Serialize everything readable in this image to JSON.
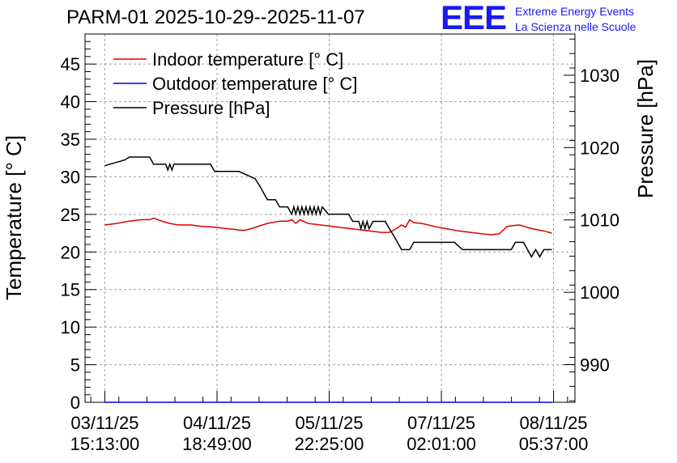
{
  "chart_data": {
    "type": "line",
    "title": "PARM-01 2025-10-29--2025-11-07",
    "ylabel_left": "Temperature [° C]",
    "ylabel_right": "Pressure [hPa]",
    "ylim_left": [
      0,
      49
    ],
    "ylim_right": [
      984.8,
      1035.7
    ],
    "xlim_hours": [
      -4.87,
      115.67
    ],
    "grid": true,
    "legend_position": "top-left",
    "x_ticks": [
      {
        "t": 0,
        "date": "03/11/25",
        "time": "15:13:00"
      },
      {
        "t": 27.6,
        "date": "04/11/25",
        "time": "18:49:00"
      },
      {
        "t": 55.2,
        "date": "05/11/25",
        "time": "22:25:00"
      },
      {
        "t": 82.8,
        "date": "07/11/25",
        "time": "02:01:00"
      },
      {
        "t": 110.4,
        "date": "08/11/25",
        "time": "05:37:00"
      }
    ],
    "y_ticks_left": [
      0,
      5,
      10,
      15,
      20,
      25,
      30,
      35,
      40,
      45
    ],
    "y_ticks_right": [
      990,
      1000,
      1010,
      1020,
      1030
    ],
    "series": [
      {
        "name": "Indoor temperature [° C]",
        "color": "#dd0000",
        "axis": "left",
        "x": [
          0,
          3,
          6,
          9,
          11,
          12,
          14,
          16,
          18,
          21,
          24,
          27,
          30,
          32,
          33,
          34.5,
          36,
          40,
          43,
          45,
          46,
          47,
          48,
          50,
          53,
          56,
          59,
          62,
          65,
          68,
          70,
          72,
          73,
          74,
          75,
          76,
          78,
          81,
          84,
          87,
          90,
          93,
          95,
          97,
          99,
          102,
          105,
          108,
          110
        ],
        "values": [
          23.6,
          23.8,
          24.1,
          24.3,
          24.3,
          24.5,
          24.1,
          23.8,
          23.6,
          23.6,
          23.4,
          23.3,
          23.1,
          23.0,
          22.9,
          22.9,
          23.1,
          23.8,
          24.1,
          24.1,
          24.3,
          23.8,
          24.3,
          23.8,
          23.6,
          23.4,
          23.2,
          23.0,
          22.8,
          22.6,
          22.6,
          23.2,
          23.6,
          23.3,
          24.3,
          23.9,
          23.8,
          23.4,
          23.1,
          22.8,
          22.6,
          22.4,
          22.3,
          22.4,
          23.4,
          23.6,
          23.1,
          22.8,
          22.5
        ]
      },
      {
        "name": "Outdoor temperature [° C]",
        "color": "#0000ee",
        "axis": "left",
        "x": [
          0,
          110
        ],
        "values": [
          0,
          0
        ]
      },
      {
        "name": "Pressure [hPa]",
        "color": "#000000",
        "axis": "right",
        "x": [
          0,
          5,
          6,
          11,
          12,
          15,
          15.5,
          16,
          16.5,
          17,
          26,
          27,
          33,
          37,
          38,
          39,
          40,
          42,
          43,
          44,
          45,
          46,
          46.5,
          47,
          47.5,
          48,
          48.5,
          49,
          49.5,
          50,
          50.5,
          51,
          51.5,
          52,
          52.5,
          53,
          53.5,
          55,
          60,
          61,
          62.5,
          63,
          63.5,
          64,
          64.5,
          65,
          66,
          69,
          70,
          71,
          72,
          73,
          73.5,
          74,
          75,
          76,
          80,
          84,
          86,
          88,
          90,
          98,
          99,
          100,
          101,
          102,
          103,
          104,
          105,
          106,
          107,
          108,
          110
        ],
        "values": [
          1017.5,
          1018.3,
          1018.7,
          1018.7,
          1017.7,
          1017.7,
          1016.9,
          1017.7,
          1016.9,
          1017.7,
          1017.7,
          1016.7,
          1016.7,
          1015.7,
          1014.8,
          1013.8,
          1012.8,
          1012.8,
          1011.8,
          1011.8,
          1011.8,
          1010.8,
          1011.8,
          1010.8,
          1011.8,
          1010.8,
          1011.8,
          1010.8,
          1011.8,
          1010.8,
          1011.8,
          1010.8,
          1011.8,
          1010.8,
          1011.8,
          1010.8,
          1011.8,
          1010.8,
          1010.8,
          1009.8,
          1009.8,
          1008.8,
          1009.8,
          1008.8,
          1009.8,
          1008.8,
          1009.8,
          1009.8,
          1008.8,
          1007.9,
          1006.9,
          1005.9,
          1005.9,
          1005.9,
          1005.9,
          1006.9,
          1006.9,
          1006.9,
          1006.9,
          1005.9,
          1005.9,
          1005.9,
          1005.9,
          1005.9,
          1006.9,
          1006.9,
          1006.9,
          1005.9,
          1004.9,
          1005.9,
          1004.9,
          1005.9,
          1005.9
        ]
      }
    ]
  },
  "logo": {
    "mark": "EEE",
    "line1": "Extreme Energy Events",
    "line2": "La Scienza nelle Scuole",
    "color": "#1a1aee"
  }
}
